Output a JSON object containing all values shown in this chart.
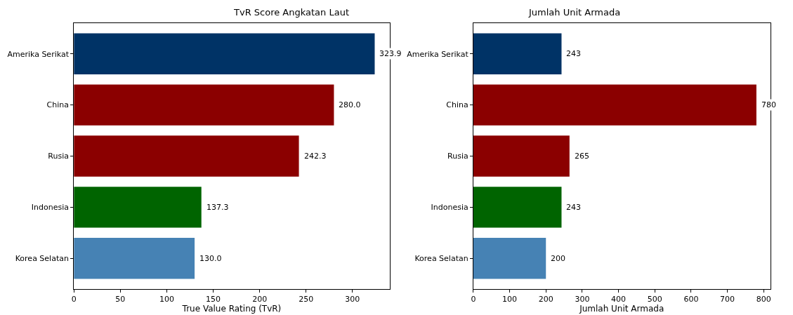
{
  "chart_data": [
    {
      "type": "bar",
      "orientation": "horizontal",
      "title": "TvR Score Angkatan Laut",
      "xlabel": "True Value Rating (TvR)",
      "categories": [
        "Amerika Serikat",
        "China",
        "Rusia",
        "Indonesia",
        "Korea Selatan"
      ],
      "values": [
        323.9,
        280.0,
        242.3,
        137.3,
        130.0
      ],
      "value_labels": [
        "323.9",
        "280.0",
        "242.3",
        "137.3",
        "130.0"
      ],
      "colors": [
        "#003366",
        "#8b0000",
        "#8b0000",
        "#006400",
        "#4682b4"
      ],
      "xlim": [
        0,
        340
      ],
      "xticks": [
        0,
        50,
        100,
        150,
        200,
        250,
        300
      ],
      "legend": false
    },
    {
      "type": "bar",
      "orientation": "horizontal",
      "title": "Jumlah Unit Armada",
      "xlabel": "Jumlah Unit Armada",
      "categories": [
        "Amerika Serikat",
        "China",
        "Rusia",
        "Indonesia",
        "Korea Selatan"
      ],
      "values": [
        243,
        780,
        265,
        243,
        200
      ],
      "data_labels": true,
      "colors": [
        "#003366",
        "#8b0000",
        "#8b0000",
        "#006400",
        "#4682b4"
      ],
      "xlim": [
        0,
        818
      ],
      "xticks": [
        0,
        100,
        200,
        300,
        400,
        500,
        600,
        700,
        800
      ],
      "legend": false
    }
  ]
}
